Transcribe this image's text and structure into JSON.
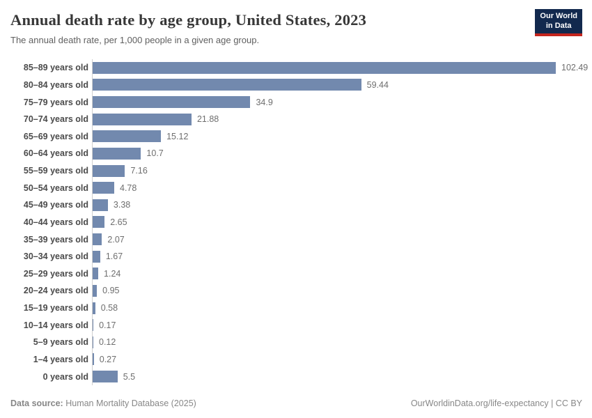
{
  "header": {
    "title": "Annual death rate by age group, United States, 2023",
    "subtitle": "The annual death rate, per 1,000 people in a given age group."
  },
  "logo": {
    "line1": "Our World",
    "line2": "in Data",
    "bg_color": "#12294e",
    "accent_color": "#c4251d"
  },
  "chart_data": {
    "type": "bar",
    "orientation": "horizontal",
    "title": "Annual death rate by age group, United States, 2023",
    "xlabel": "",
    "ylabel": "",
    "xlim": [
      0,
      102.49
    ],
    "grid": false,
    "legend": false,
    "bar_color": "#7289ae",
    "axis_line_color": "#cfcfcf",
    "categories": [
      "85–89 years old",
      "80–84 years old",
      "75–79 years old",
      "70–74 years old",
      "65–69 years old",
      "60–64 years old",
      "55–59 years old",
      "50–54 years old",
      "45–49 years old",
      "40–44 years old",
      "35–39 years old",
      "30–34 years old",
      "25–29 years old",
      "20–24 years old",
      "15–19 years old",
      "10–14 years old",
      "5–9 years old",
      "1–4 years old",
      "0 years old"
    ],
    "values": [
      102.49,
      59.44,
      34.9,
      21.88,
      15.12,
      10.7,
      7.16,
      4.78,
      3.38,
      2.65,
      2.07,
      1.67,
      1.24,
      0.95,
      0.58,
      0.17,
      0.12,
      0.27,
      5.5
    ],
    "value_labels": [
      "102.49",
      "59.44",
      "34.9",
      "21.88",
      "15.12",
      "10.7",
      "7.16",
      "4.78",
      "3.38",
      "2.65",
      "2.07",
      "1.67",
      "1.24",
      "0.95",
      "0.58",
      "0.17",
      "0.12",
      "0.27",
      "5.5"
    ]
  },
  "footer": {
    "source_label": "Data source:",
    "source_value": "Human Mortality Database (2025)",
    "credit": "OurWorldinData.org/life-expectancy | CC BY"
  }
}
